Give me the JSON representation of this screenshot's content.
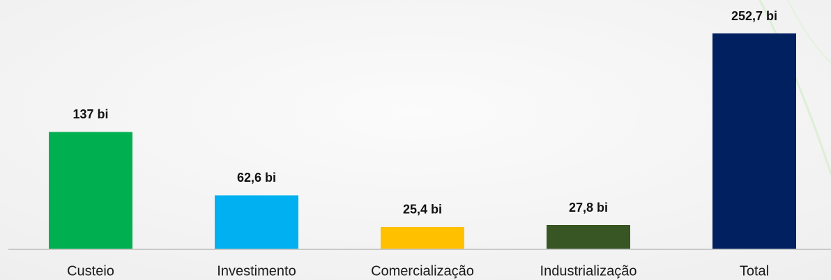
{
  "chart_data": {
    "type": "bar",
    "categories": [
      "Custeio",
      "Investimento",
      "Comercialização",
      "Industrialização",
      "Total"
    ],
    "values": [
      137,
      62.6,
      25.4,
      27.8,
      252.7
    ],
    "value_labels": [
      "137 bi",
      "62,6 bi",
      "25,4 bi",
      "27,8 bi",
      "252,7 bi"
    ],
    "colors": [
      "#00b050",
      "#00b0f0",
      "#ffc000",
      "#375623",
      "#002060"
    ]
  }
}
